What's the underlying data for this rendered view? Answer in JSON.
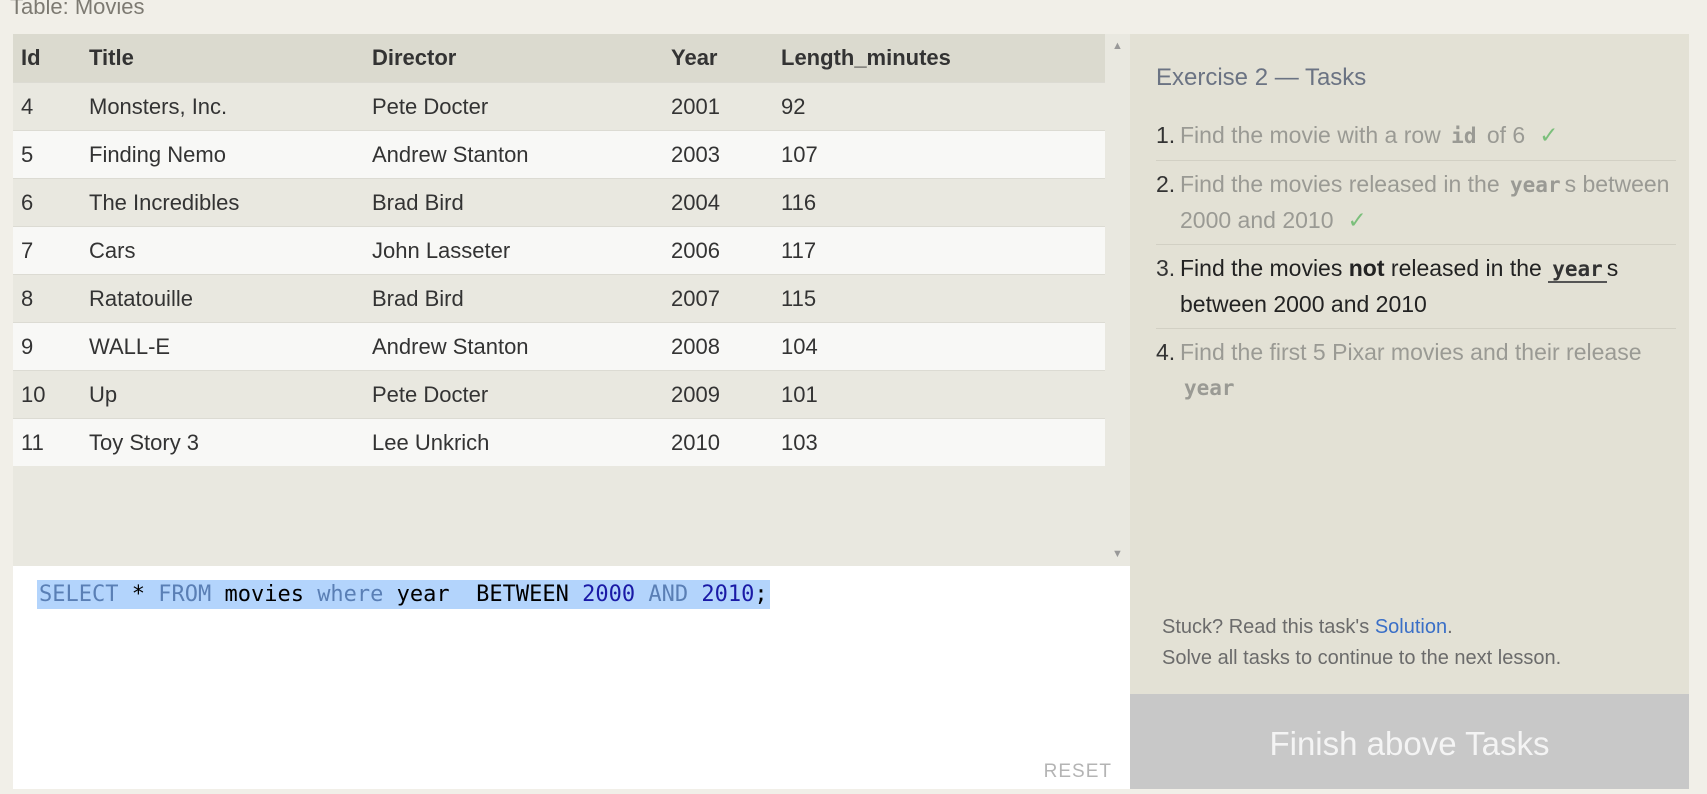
{
  "table_label": "Table: Movies",
  "columns": [
    "Id",
    "Title",
    "Director",
    "Year",
    "Length_minutes"
  ],
  "rows": [
    [
      "4",
      "Monsters, Inc.",
      "Pete Docter",
      "2001",
      "92"
    ],
    [
      "5",
      "Finding Nemo",
      "Andrew Stanton",
      "2003",
      "107"
    ],
    [
      "6",
      "The Incredibles",
      "Brad Bird",
      "2004",
      "116"
    ],
    [
      "7",
      "Cars",
      "John Lasseter",
      "2006",
      "117"
    ],
    [
      "8",
      "Ratatouille",
      "Brad Bird",
      "2007",
      "115"
    ],
    [
      "9",
      "WALL-E",
      "Andrew Stanton",
      "2008",
      "104"
    ],
    [
      "10",
      "Up",
      "Pete Docter",
      "2009",
      "101"
    ],
    [
      "11",
      "Toy Story 3",
      "Lee Unkrich",
      "2010",
      "103"
    ]
  ],
  "editor": {
    "tokens": [
      {
        "t": "SELECT",
        "k": "kw"
      },
      {
        "t": " * ",
        "k": ""
      },
      {
        "t": "FROM",
        "k": "kw"
      },
      {
        "t": " movies ",
        "k": ""
      },
      {
        "t": "where",
        "k": "kw"
      },
      {
        "t": " year  BETWEEN ",
        "k": ""
      },
      {
        "t": "2000",
        "k": "num"
      },
      {
        "t": " ",
        "k": ""
      },
      {
        "t": "AND",
        "k": "kw"
      },
      {
        "t": " ",
        "k": ""
      },
      {
        "t": "2010",
        "k": "num"
      },
      {
        "t": ";",
        "k": ""
      }
    ],
    "reset_label": "RESET"
  },
  "exercise": {
    "title": "Exercise 2 — Tasks",
    "tasks": [
      {
        "num": "1.",
        "state": "done",
        "parts": [
          {
            "t": "Find the movie with a row ",
            "k": ""
          },
          {
            "t": "id",
            "k": "code"
          },
          {
            "t": " of 6",
            "k": ""
          }
        ],
        "check": "✓"
      },
      {
        "num": "2.",
        "state": "done",
        "parts": [
          {
            "t": "Find the movies released in the ",
            "k": ""
          },
          {
            "t": "year",
            "k": "code"
          },
          {
            "t": "s between 2000 and 2010",
            "k": ""
          }
        ],
        "check": "✓"
      },
      {
        "num": "3.",
        "state": "current",
        "parts": [
          {
            "t": "Find the movies ",
            "k": ""
          },
          {
            "t": "not",
            "k": "bold"
          },
          {
            "t": " released in the ",
            "k": ""
          },
          {
            "t": "year",
            "k": "code"
          },
          {
            "t": "s between 2000 and 2010",
            "k": ""
          }
        ],
        "check": ""
      },
      {
        "num": "4.",
        "state": "pending",
        "parts": [
          {
            "t": "Find the first 5 Pixar movies and their release ",
            "k": ""
          },
          {
            "t": "year",
            "k": "code"
          }
        ],
        "check": ""
      }
    ],
    "stuck_prefix": "Stuck? Read this task's ",
    "solution_link": "Solution",
    "stuck_suffix": ".",
    "continue_text": "Solve all tasks to continue to the next lesson.",
    "finish_button": "Finish above Tasks"
  }
}
